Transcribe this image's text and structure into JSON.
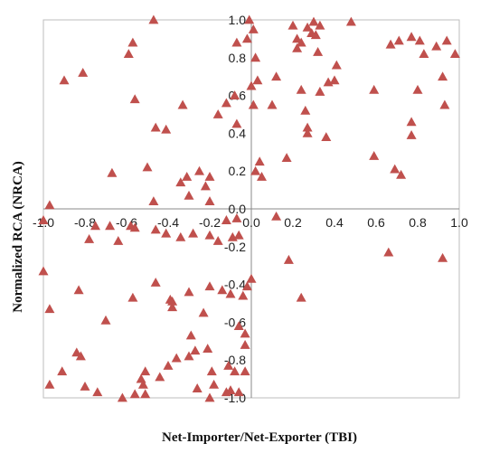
{
  "chart_data": {
    "type": "scatter",
    "title": "",
    "xlabel": "Net-Importer/Net-Exporter (TBI)",
    "ylabel": "Normalized RCA   (NRCA)",
    "xlim": [
      -1.0,
      1.0
    ],
    "ylim": [
      -1.0,
      1.0
    ],
    "x_ticks": [
      "-1.0",
      "-0.8",
      "-0.6",
      "-0.4",
      "-0.2",
      "0.0",
      "0.2",
      "0.4",
      "0.6",
      "0.8",
      "1.0"
    ],
    "y_ticks": [
      "1.0",
      "0.8",
      "0.6",
      "0.4",
      "0.2",
      "0.0",
      "-0.2",
      "-0.4",
      "-0.6",
      "-0.8",
      "-1.0"
    ],
    "grid": false,
    "marker": "triangle",
    "marker_color": "#C0504D",
    "axis_color": "#888888",
    "series": [
      {
        "points": [
          [
            -0.47,
            1.0
          ],
          [
            -0.57,
            0.88
          ],
          [
            -0.59,
            0.82
          ],
          [
            -0.81,
            0.72
          ],
          [
            -0.9,
            0.68
          ],
          [
            -0.56,
            0.58
          ],
          [
            -0.46,
            0.43
          ],
          [
            -0.41,
            0.42
          ],
          [
            -0.5,
            0.22
          ],
          [
            -0.67,
            0.19
          ],
          [
            -0.47,
            0.04
          ],
          [
            -0.34,
            0.14
          ],
          [
            -0.31,
            0.17
          ],
          [
            -0.25,
            0.2
          ],
          [
            -0.2,
            0.17
          ],
          [
            -0.22,
            0.12
          ],
          [
            -0.3,
            0.07
          ],
          [
            -0.2,
            0.04
          ],
          [
            -0.33,
            0.55
          ],
          [
            -0.12,
            0.56
          ],
          [
            -0.16,
            0.5
          ],
          [
            -0.08,
            0.6
          ],
          [
            -0.07,
            0.45
          ],
          [
            -0.07,
            0.88
          ],
          [
            -0.02,
            0.9
          ],
          [
            -0.01,
            1.0
          ],
          [
            0.01,
            0.95
          ],
          [
            0.02,
            0.8
          ],
          [
            0.0,
            0.65
          ],
          [
            0.01,
            0.55
          ],
          [
            0.02,
            0.2
          ],
          [
            0.04,
            0.25
          ],
          [
            0.05,
            0.17
          ],
          [
            0.03,
            0.68
          ],
          [
            0.1,
            0.55
          ],
          [
            0.12,
            0.7
          ],
          [
            0.17,
            0.27
          ],
          [
            0.2,
            0.97
          ],
          [
            0.22,
            0.9
          ],
          [
            0.22,
            0.85
          ],
          [
            0.24,
            0.88
          ],
          [
            0.27,
            0.96
          ],
          [
            0.29,
            0.93
          ],
          [
            0.3,
            0.99
          ],
          [
            0.31,
            0.92
          ],
          [
            0.33,
            0.97
          ],
          [
            0.32,
            0.83
          ],
          [
            0.24,
            0.63
          ],
          [
            0.26,
            0.52
          ],
          [
            0.27,
            0.43
          ],
          [
            0.27,
            0.4
          ],
          [
            0.33,
            0.62
          ],
          [
            0.36,
            0.38
          ],
          [
            0.37,
            0.67
          ],
          [
            0.4,
            0.68
          ],
          [
            0.41,
            0.76
          ],
          [
            0.48,
            0.99
          ],
          [
            0.59,
            0.63
          ],
          [
            0.67,
            0.87
          ],
          [
            0.71,
            0.89
          ],
          [
            0.77,
            0.91
          ],
          [
            0.81,
            0.89
          ],
          [
            0.83,
            0.82
          ],
          [
            0.89,
            0.86
          ],
          [
            0.94,
            0.89
          ],
          [
            0.98,
            0.82
          ],
          [
            0.8,
            0.63
          ],
          [
            0.92,
            0.7
          ],
          [
            0.93,
            0.55
          ],
          [
            0.77,
            0.46
          ],
          [
            0.77,
            0.39
          ],
          [
            0.59,
            0.28
          ],
          [
            0.69,
            0.21
          ],
          [
            0.72,
            0.18
          ],
          [
            0.66,
            -0.23
          ],
          [
            0.92,
            -0.26
          ],
          [
            -1.0,
            -0.06
          ],
          [
            -0.97,
            0.02
          ],
          [
            -0.75,
            -0.09
          ],
          [
            -0.68,
            -0.09
          ],
          [
            -0.58,
            -0.09
          ],
          [
            -0.56,
            -0.1
          ],
          [
            -0.78,
            -0.16
          ],
          [
            -0.64,
            -0.17
          ],
          [
            -0.46,
            -0.11
          ],
          [
            -0.41,
            -0.13
          ],
          [
            -0.34,
            -0.15
          ],
          [
            -0.28,
            -0.13
          ],
          [
            -0.2,
            -0.14
          ],
          [
            -0.16,
            -0.17
          ],
          [
            -0.09,
            -0.15
          ],
          [
            -0.12,
            -0.06
          ],
          [
            -0.07,
            -0.05
          ],
          [
            -0.06,
            -0.14
          ],
          [
            0.12,
            -0.04
          ],
          [
            0.18,
            -0.27
          ],
          [
            0.24,
            -0.47
          ],
          [
            -1.0,
            -0.33
          ],
          [
            -0.97,
            -0.53
          ],
          [
            -0.83,
            -0.43
          ],
          [
            -0.7,
            -0.59
          ],
          [
            -0.57,
            -0.47
          ],
          [
            -0.46,
            -0.39
          ],
          [
            -0.39,
            -0.48
          ],
          [
            -0.38,
            -0.52
          ],
          [
            -0.38,
            -0.49
          ],
          [
            -0.3,
            -0.44
          ],
          [
            -0.23,
            -0.55
          ],
          [
            -0.2,
            -0.41
          ],
          [
            -0.14,
            -0.43
          ],
          [
            -0.1,
            -0.45
          ],
          [
            -0.04,
            -0.46
          ],
          [
            -0.02,
            -0.41
          ],
          [
            0.0,
            -0.37
          ],
          [
            -0.06,
            -0.62
          ],
          [
            -0.03,
            -0.66
          ],
          [
            -0.03,
            -0.72
          ],
          [
            -0.29,
            -0.67
          ],
          [
            -0.21,
            -0.74
          ],
          [
            -0.11,
            -0.83
          ],
          [
            -0.08,
            -0.86
          ],
          [
            -0.03,
            -0.86
          ],
          [
            -0.18,
            -0.93
          ],
          [
            -0.12,
            -0.97
          ],
          [
            -0.1,
            -0.96
          ],
          [
            -0.06,
            -0.97
          ],
          [
            -0.19,
            -0.86
          ],
          [
            -0.27,
            -0.75
          ],
          [
            -0.3,
            -0.78
          ],
          [
            -0.36,
            -0.79
          ],
          [
            -0.4,
            -0.83
          ],
          [
            -0.44,
            -0.89
          ],
          [
            -0.51,
            -0.86
          ],
          [
            -0.53,
            -0.9
          ],
          [
            -0.52,
            -0.93
          ],
          [
            -0.56,
            -0.98
          ],
          [
            -0.62,
            -1.0
          ],
          [
            -0.74,
            -0.97
          ],
          [
            -0.8,
            -0.94
          ],
          [
            -0.82,
            -0.78
          ],
          [
            -0.84,
            -0.76
          ],
          [
            -0.91,
            -0.86
          ],
          [
            -0.97,
            -0.93
          ],
          [
            -0.51,
            -0.98
          ],
          [
            -0.26,
            -0.95
          ],
          [
            -0.2,
            -1.0
          ]
        ]
      }
    ]
  }
}
